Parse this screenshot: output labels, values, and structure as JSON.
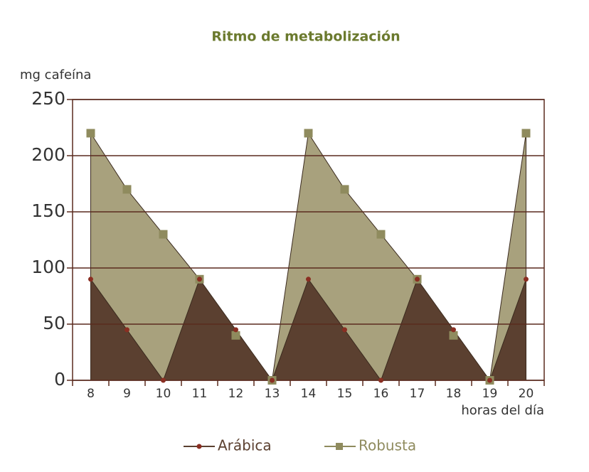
{
  "chart_data": {
    "type": "area",
    "title": "Ritmo de metabolización",
    "y_label": "mg cafeína",
    "x_label": "horas del día",
    "categories": [
      "8",
      "9",
      "10",
      "11",
      "12",
      "13",
      "14",
      "15",
      "16",
      "17",
      "18",
      "19",
      "20"
    ],
    "series": [
      {
        "name": "Robusta",
        "color": "#a8a17d",
        "values": [
          220,
          170,
          130,
          90,
          40,
          0,
          220,
          170,
          130,
          90,
          40,
          0,
          220
        ]
      },
      {
        "name": "Arábica",
        "color": "#5b4030",
        "values": [
          90,
          45,
          0,
          90,
          45,
          0,
          90,
          45,
          0,
          90,
          45,
          0,
          90
        ]
      }
    ],
    "ylim": [
      0,
      250
    ],
    "yticks": [
      0,
      50,
      100,
      150,
      200,
      250
    ],
    "grid": true
  }
}
